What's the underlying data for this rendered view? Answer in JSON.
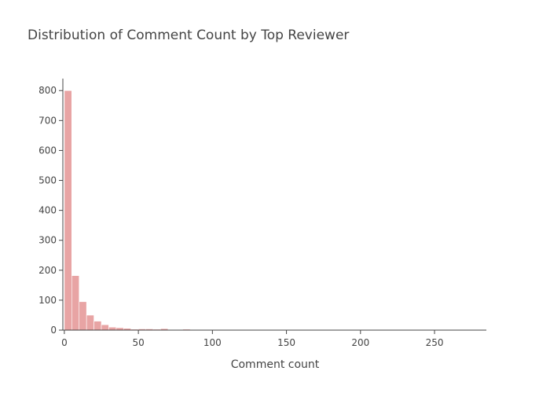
{
  "chart_data": {
    "type": "bar",
    "title": "Distribution of Comment Count by Top Reviewer",
    "xlabel": "Comment count",
    "ylabel": "",
    "bin_width": 5,
    "x": [
      0,
      5,
      10,
      15,
      20,
      25,
      30,
      35,
      40,
      45,
      50,
      55,
      60,
      65,
      70,
      75,
      80,
      85,
      90,
      95
    ],
    "values": [
      800,
      182,
      95,
      50,
      30,
      18,
      10,
      8,
      6,
      3,
      4,
      4,
      3,
      5,
      2,
      1,
      3,
      1,
      2,
      1
    ],
    "xlim": [
      -1,
      285
    ],
    "ylim": [
      0,
      840
    ],
    "x_ticks": [
      0,
      50,
      100,
      150,
      200,
      250
    ],
    "y_ticks": [
      0,
      100,
      200,
      300,
      400,
      500,
      600,
      700,
      800
    ],
    "grid": false,
    "colors": {
      "bar": "#e8a4a4",
      "axis": "#444444",
      "text": "#444444"
    }
  }
}
